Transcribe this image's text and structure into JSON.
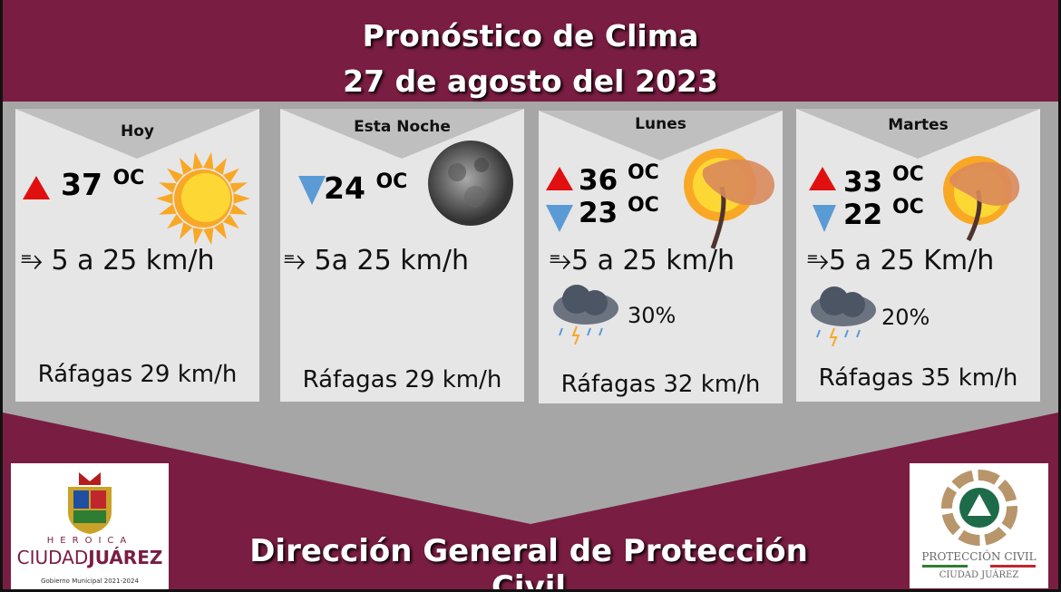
{
  "header": {
    "line1": "Pronóstico de Clima",
    "line2": "27 de agosto del 2023"
  },
  "cards": [
    {
      "label": "Hoy",
      "high": "37",
      "unit": "OC",
      "wind": "5 a 25 km/h",
      "gusts": "Ráfagas 29 km/h",
      "icon": "sun-icon"
    },
    {
      "label": "Esta Noche",
      "low": "24",
      "unit": "OC",
      "wind": "5a 25 km/h",
      "gusts": "Ráfagas 29 km/h",
      "icon": "moon-icon"
    },
    {
      "label": "Lunes",
      "high": "36",
      "low": "23",
      "unit": "OC",
      "wind": "5 a 25 km/h",
      "rain": "30%",
      "gusts": "Ráfagas 32 km/h",
      "icon": "windy-sun-tree-icon"
    },
    {
      "label": "Martes",
      "high": "33",
      "low": "22",
      "unit": "OC",
      "wind": "5 a 25 Km/h",
      "rain": "20%",
      "gusts": "Ráfagas 35 km/h",
      "icon": "windy-sun-tree-icon"
    }
  ],
  "footer": {
    "title": "Dirección General de Protección Civil"
  },
  "logos": {
    "left": {
      "line1": "HEROICA",
      "line2a": "CIUDAD",
      "line2b": "JUÁREZ",
      "line3": "Gobierno Municipal 2021-2024"
    },
    "right": {
      "line1": "PROTECCIÓN CIVIL",
      "line2": "CIUDAD JUÁREZ"
    }
  },
  "colors": {
    "background": "#7a1d42",
    "panel": "#a6a6a6",
    "card": "#e6e6e6",
    "high": "#e01010",
    "low": "#5b9bd5"
  }
}
